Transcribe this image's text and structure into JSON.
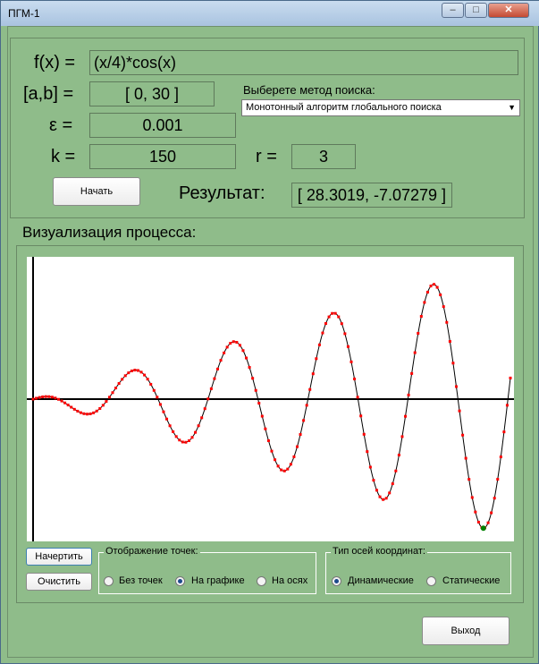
{
  "window": {
    "title": "ПГМ-1",
    "minimize": "–",
    "maximize": "□",
    "close": "✕"
  },
  "params": {
    "f_label": "f(x) =",
    "f_value": "(x/4)*cos(x)",
    "ab_label": "[a,b] =",
    "ab_value": "[ 0, 30 ]",
    "eps_label": "ε =",
    "eps_value": "0.001",
    "k_label": "k =",
    "k_value": "150",
    "r_label": "r =",
    "r_value": "3",
    "method_label": "Выберете метод поиска:",
    "method_value": "Монотонный алгоритм глобального поиска",
    "start_label": "Начать",
    "result_label": "Результат:",
    "result_value": "[  28.3019, -7.07279 ]"
  },
  "viz": {
    "title": "Визуализация процесса:"
  },
  "controls": {
    "draw_label": "Начертить",
    "clear_label": "Очистить",
    "points_group": "Отображение точек:",
    "points_options": [
      "Без точек",
      "На графике",
      "На осях"
    ],
    "points_selected": "На графике",
    "axes_group": "Тип осей координат:",
    "axes_options": [
      "Динамические",
      "Статические"
    ],
    "axes_selected": "Динамические"
  },
  "exit_label": "Выход",
  "chart_data": {
    "type": "line",
    "function": "(x/4)*cos(x)",
    "xlim": [
      0,
      30
    ],
    "ylim": [
      -7.5,
      7.5
    ],
    "samples_count": 150,
    "minimum_point": {
      "x": 28.3019,
      "y": -7.07279
    },
    "colors": {
      "curve": "#000000",
      "points": "#ff0000",
      "minimum": "#008000",
      "axes": "#000000"
    }
  }
}
